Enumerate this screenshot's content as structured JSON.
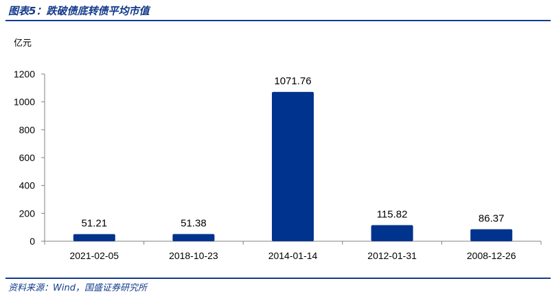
{
  "header": {
    "title": "图表5：跌破债底转债平均市值"
  },
  "footer": {
    "source": "资料来源：Wind，国盛证券研究所"
  },
  "chart_data": {
    "type": "bar",
    "title": "",
    "xlabel": "",
    "ylabel": "亿元",
    "categories": [
      "2021-02-05",
      "2018-10-23",
      "2014-01-14",
      "2012-01-31",
      "2008-12-26"
    ],
    "values": [
      51.21,
      51.38,
      1071.76,
      115.82,
      86.37
    ],
    "data_labels": [
      "51.21",
      "51.38",
      "1071.76",
      "115.82",
      "86.37"
    ],
    "ylim": [
      0,
      1200
    ],
    "yticks": [
      0,
      200,
      400,
      600,
      800,
      1000,
      1200
    ],
    "grid": false,
    "legend": "none",
    "bar_color": "#00338d",
    "axis_color": "#808080"
  }
}
